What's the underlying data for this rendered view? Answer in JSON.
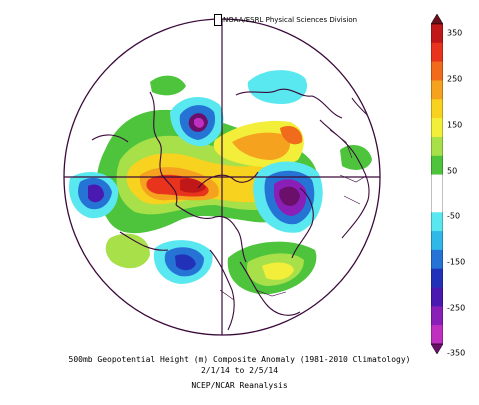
{
  "credit": "NOAA/ESRL Physical Sciences Division",
  "captions": {
    "line1": "500mb Geopotential Height (m) Composite Anomaly (1981-2010 Climatology)",
    "line2": "2/1/14  to 2/5/14",
    "line3": "NCEP/NCAR Reanalysis"
  },
  "colorbar": {
    "labels": [
      "350",
      "250",
      "150",
      "50",
      "-50",
      "-150",
      "-250",
      "-350"
    ],
    "colors": [
      "#6b0f1a",
      "#c01818",
      "#e8341c",
      "#f06b1c",
      "#f5a21e",
      "#f7d21e",
      "#f2ee3a",
      "#a8e04a",
      "#4dc43c",
      "#ffffff",
      "#ffffff",
      "#5ae8f0",
      "#2fb8e8",
      "#2673d6",
      "#2232b8",
      "#4a19b0",
      "#8a1fb8",
      "#c030c0",
      "#6a0f6a"
    ]
  },
  "colors": {
    "map_outline": "#3a0a3a",
    "background": "#ffffff"
  }
}
